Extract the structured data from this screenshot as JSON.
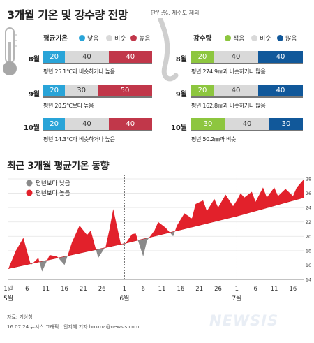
{
  "title": "3개월 기온 및 강수량 전망",
  "unit_note": "단위:%, 제주도 제외",
  "colors": {
    "low_temp": "#29a4d8",
    "mid": "#d9d9d9",
    "high_temp": "#c1374a",
    "low_rain": "#8dc63f",
    "high_rain": "#11589a",
    "above": "#e2212b",
    "below": "#8a8a8a"
  },
  "temperature": {
    "header": "평균기온",
    "legend": [
      "낮음",
      "비슷",
      "높음"
    ],
    "rows": [
      {
        "month": "8월",
        "low": 20,
        "mid": 40,
        "high": 40,
        "low_label": "20",
        "mid_label": "40",
        "high_label": "40",
        "desc": "평년 25.1℃과 비슷하거나 높음"
      },
      {
        "month": "9월",
        "low": 20,
        "mid": 30,
        "high": 50,
        "low_label": "20",
        "mid_label": "30",
        "high_label": "50",
        "desc": "평년 20.5℃보다 높음"
      },
      {
        "month": "10월",
        "low": 20,
        "mid": 40,
        "high": 40,
        "low_label": "20",
        "mid_label": "40",
        "high_label": "40",
        "desc": "평년 14.3℃과 비슷하거나 높음"
      }
    ]
  },
  "precipitation": {
    "header": "강수량",
    "legend": [
      "적음",
      "비슷",
      "많음"
    ],
    "rows": [
      {
        "month": "8월",
        "low": 20,
        "mid": 40,
        "high": 40,
        "low_label": "20",
        "mid_label": "40",
        "high_label": "40",
        "desc": "평년 274.9㎜과 비슷하거나 많음"
      },
      {
        "month": "9월",
        "low": 20,
        "mid": 40,
        "high": 40,
        "low_label": "20",
        "mid_label": "40",
        "high_label": "40",
        "desc": "평년 162.8㎜과 비슷하거나 많음"
      },
      {
        "month": "10월",
        "low": 30,
        "mid": 40,
        "high": 30,
        "low_label": "30",
        "mid_label": "40",
        "high_label": "30",
        "desc": "평년 50.2㎜과 비슷"
      }
    ]
  },
  "recent_title": "최근 3개월 평균기온 동향",
  "chart_data": {
    "type": "area",
    "title": "최근 3개월 평균기온 동향",
    "ylim": [
      14,
      28
    ],
    "y_ticks": [
      14,
      16,
      18,
      20,
      22,
      24,
      26,
      28
    ],
    "x_range": [
      0,
      79
    ],
    "x_ticks": [
      {
        "x": 0,
        "label": "1일"
      },
      {
        "x": 5,
        "label": "6"
      },
      {
        "x": 10,
        "label": "11"
      },
      {
        "x": 15,
        "label": "16"
      },
      {
        "x": 20,
        "label": "21"
      },
      {
        "x": 25,
        "label": "26"
      },
      {
        "x": 31,
        "label": "1"
      },
      {
        "x": 36,
        "label": "6"
      },
      {
        "x": 41,
        "label": "11"
      },
      {
        "x": 46,
        "label": "16"
      },
      {
        "x": 51,
        "label": "21"
      },
      {
        "x": 56,
        "label": "26"
      },
      {
        "x": 61,
        "label": "1"
      },
      {
        "x": 66,
        "label": "6"
      },
      {
        "x": 71,
        "label": "11"
      },
      {
        "x": 76,
        "label": "16"
      }
    ],
    "month_labels": [
      {
        "x": 0,
        "label": "5월"
      },
      {
        "x": 31,
        "label": "6월"
      },
      {
        "x": 61,
        "label": "7월"
      }
    ],
    "month_dividers": [
      31,
      61
    ],
    "legend": [
      "평년보다 낮음",
      "평년보다 높음"
    ],
    "normal": [
      [
        0,
        15.5
      ],
      [
        31,
        19.0
      ],
      [
        61,
        22.8
      ],
      [
        79,
        25.4
      ]
    ],
    "actual": [
      [
        0,
        15.5
      ],
      [
        2,
        18.0
      ],
      [
        4,
        19.8
      ],
      [
        6,
        16.0
      ],
      [
        8,
        17.0
      ],
      [
        9,
        15.1
      ],
      [
        11,
        17.4
      ],
      [
        13,
        17.2
      ],
      [
        15,
        16.0
      ],
      [
        17,
        19.2
      ],
      [
        19,
        21.5
      ],
      [
        21,
        20.2
      ],
      [
        22,
        20.8
      ],
      [
        24,
        17.0
      ],
      [
        26,
        18.6
      ],
      [
        27,
        21.0
      ],
      [
        28,
        23.8
      ],
      [
        30,
        19.0
      ],
      [
        31,
        18.8
      ],
      [
        33,
        20.3
      ],
      [
        34,
        20.4
      ],
      [
        36,
        17.2
      ],
      [
        37,
        19.4
      ],
      [
        39,
        20.8
      ],
      [
        40,
        22.0
      ],
      [
        42,
        21.2
      ],
      [
        44,
        20.0
      ],
      [
        45,
        21.5
      ],
      [
        47,
        23.2
      ],
      [
        49,
        22.5
      ],
      [
        50,
        24.5
      ],
      [
        52,
        25.0
      ],
      [
        53,
        23.5
      ],
      [
        55,
        25.2
      ],
      [
        56,
        24.0
      ],
      [
        58,
        25.8
      ],
      [
        60,
        24.2
      ],
      [
        61,
        25.0
      ],
      [
        62,
        26.0
      ],
      [
        63,
        25.4
      ],
      [
        65,
        26.2
      ],
      [
        66,
        24.8
      ],
      [
        68,
        26.8
      ],
      [
        69,
        25.4
      ],
      [
        71,
        26.8
      ],
      [
        72,
        25.6
      ],
      [
        74,
        26.6
      ],
      [
        76,
        25.6
      ],
      [
        77,
        26.8
      ],
      [
        79,
        28.0
      ]
    ]
  },
  "footer": {
    "source": "자료: 기상청",
    "credit": "16.07.24 뉴시스 그래픽 : 안지혜 기자 hokma@newsis.com",
    "brand": "NEWSIS"
  }
}
